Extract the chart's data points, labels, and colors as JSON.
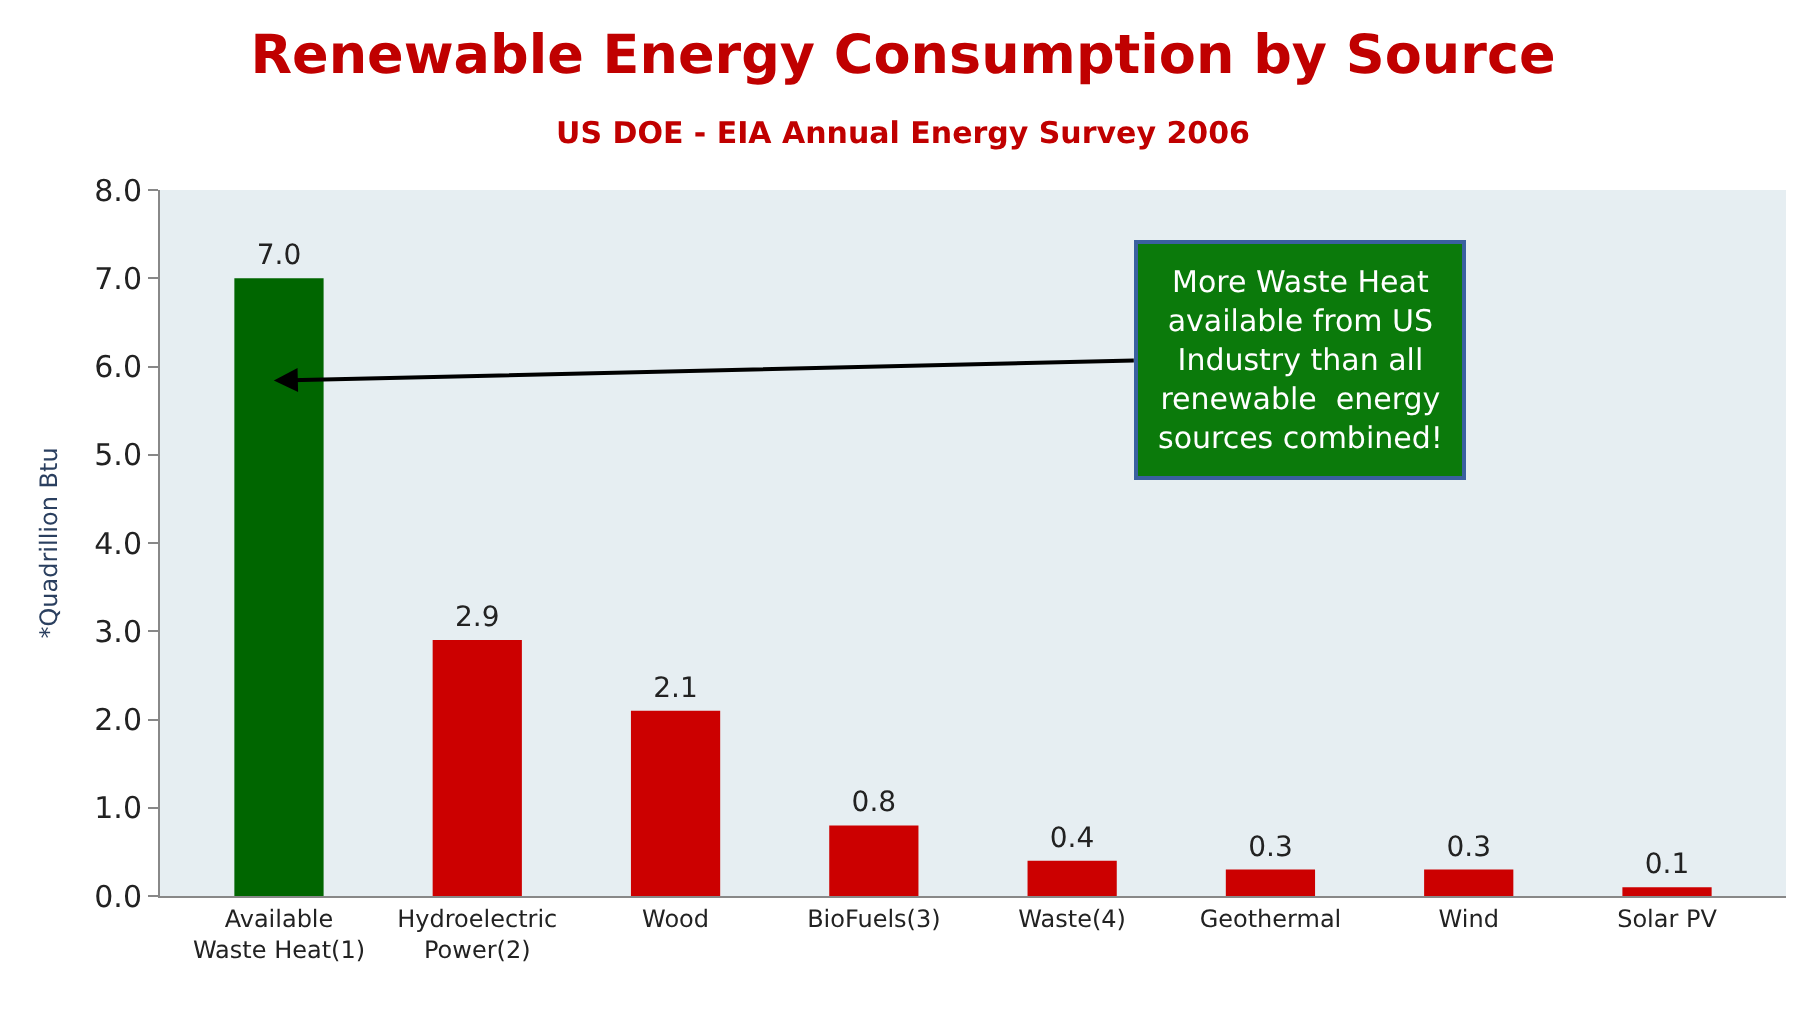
{
  "chart_data": {
    "type": "bar",
    "title": "Renewable Energy Consumption by Source",
    "subtitle": "US DOE - EIA Annual Energy Survey 2006",
    "ylabel": "*Quadrillion Btu",
    "categories": [
      "Available\nWaste Heat(1)",
      "Hydroelectric\nPower(2)",
      "Wood",
      "BioFuels(3)",
      "Waste(4)",
      "Geothermal",
      "Wind",
      "Solar PV"
    ],
    "values": [
      7.0,
      2.9,
      2.1,
      0.8,
      0.4,
      0.3,
      0.3,
      0.1
    ],
    "value_labels": [
      "7.0",
      "2.9",
      "2.1",
      "0.8",
      "0.4",
      "0.3",
      "0.3",
      "0.1"
    ],
    "colors": [
      "#006600",
      "#cc0000",
      "#cc0000",
      "#cc0000",
      "#cc0000",
      "#cc0000",
      "#cc0000",
      "#cc0000"
    ],
    "ylim": [
      0,
      8
    ],
    "yticks": [
      {
        "value": 0,
        "label": "0.0"
      },
      {
        "value": 1,
        "label": "1.0"
      },
      {
        "value": 2,
        "label": "2.0"
      },
      {
        "value": 3,
        "label": "3.0"
      },
      {
        "value": 4,
        "label": "4.0"
      },
      {
        "value": 5,
        "label": "5.0"
      },
      {
        "value": 6,
        "label": "6.0"
      },
      {
        "value": 7,
        "label": "7.0"
      },
      {
        "value": 8,
        "label": "8.0"
      }
    ],
    "annotations": [
      "More Waste Heat\navailable from US\nIndustry than all\nrenewable  energy\nsources combined!"
    ],
    "grid": false,
    "legend": false
  }
}
